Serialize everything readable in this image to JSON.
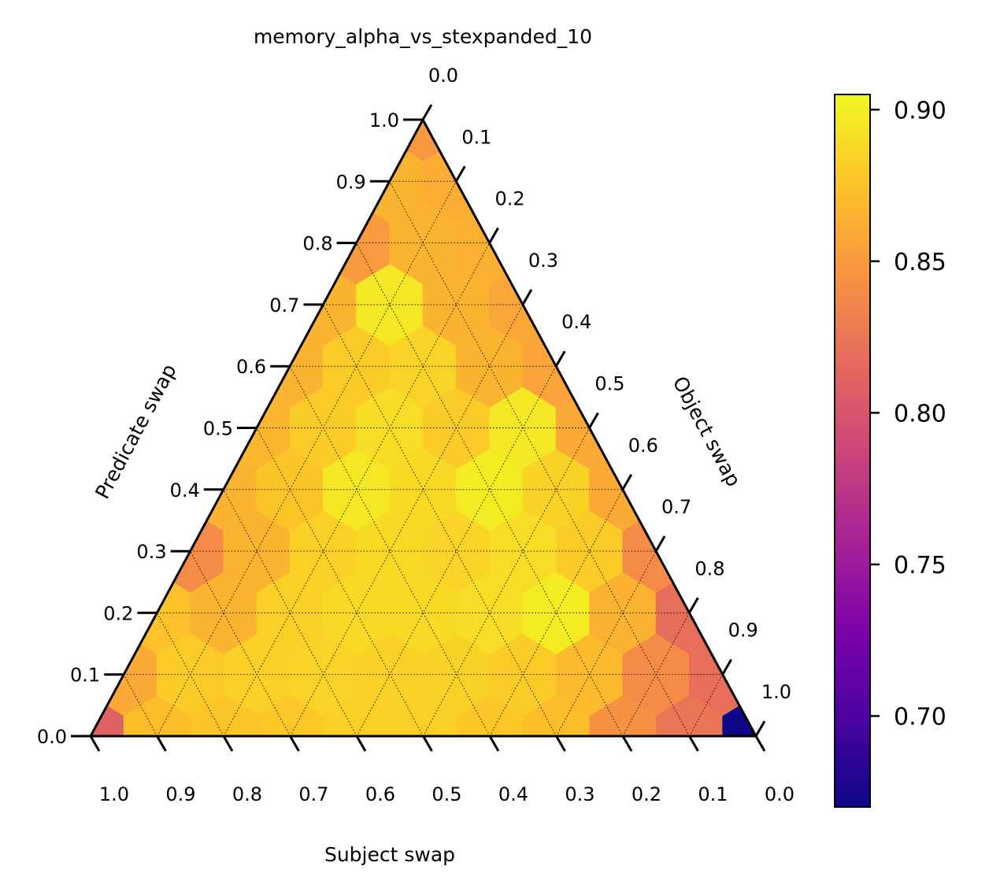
{
  "chart_data": {
    "type": "heatmap",
    "subtype": "ternary-hexbin",
    "title": "memory_alpha_vs_stexpanded_10",
    "axes": {
      "bottom": {
        "label": "Subject swap",
        "ticks": [
          "1.0",
          "0.9",
          "0.8",
          "0.7",
          "0.6",
          "0.5",
          "0.4",
          "0.3",
          "0.2",
          "0.1",
          "0.0"
        ]
      },
      "left": {
        "label": "Predicate swap",
        "ticks": [
          "0.0",
          "0.1",
          "0.2",
          "0.3",
          "0.4",
          "0.5",
          "0.6",
          "0.7",
          "0.8",
          "0.9",
          "1.0"
        ]
      },
      "right": {
        "label": "Object swap",
        "ticks": [
          "0.0",
          "0.1",
          "0.2",
          "0.3",
          "0.4",
          "0.5",
          "0.6",
          "0.7",
          "0.8",
          "0.9",
          "1.0"
        ]
      }
    },
    "grid": true,
    "colorbar": {
      "colormap": "plasma",
      "range": [
        0.67,
        0.905
      ],
      "ticks": [
        "0.70",
        "0.75",
        "0.80",
        "0.85",
        "0.90"
      ],
      "tick_values": [
        0.7,
        0.75,
        0.8,
        0.85,
        0.9
      ]
    },
    "resolution": 10,
    "cells_note": "Each row is predicate = row/10; entries run from subject = 1 - predicate (left edge) to object = 1 - predicate (right edge).",
    "cells": [
      [
        0.81,
        0.872,
        0.876,
        0.878,
        0.882,
        0.882,
        0.878,
        0.872,
        0.845,
        0.825,
        0.67
      ],
      [
        0.86,
        0.88,
        0.882,
        0.885,
        0.883,
        0.884,
        0.88,
        0.87,
        0.84,
        0.82
      ],
      [
        0.875,
        0.866,
        0.882,
        0.888,
        0.888,
        0.89,
        0.898,
        0.865,
        0.82
      ],
      [
        0.84,
        0.866,
        0.882,
        0.888,
        0.885,
        0.89,
        0.88,
        0.84
      ],
      [
        0.866,
        0.876,
        0.895,
        0.888,
        0.898,
        0.884,
        0.86
      ],
      [
        0.868,
        0.88,
        0.89,
        0.88,
        0.895,
        0.86
      ],
      [
        0.866,
        0.88,
        0.885,
        0.866,
        0.856
      ],
      [
        0.866,
        0.895,
        0.866,
        0.858
      ],
      [
        0.85,
        0.866,
        0.864
      ],
      [
        0.866,
        0.862
      ],
      [
        0.848
      ]
    ]
  }
}
